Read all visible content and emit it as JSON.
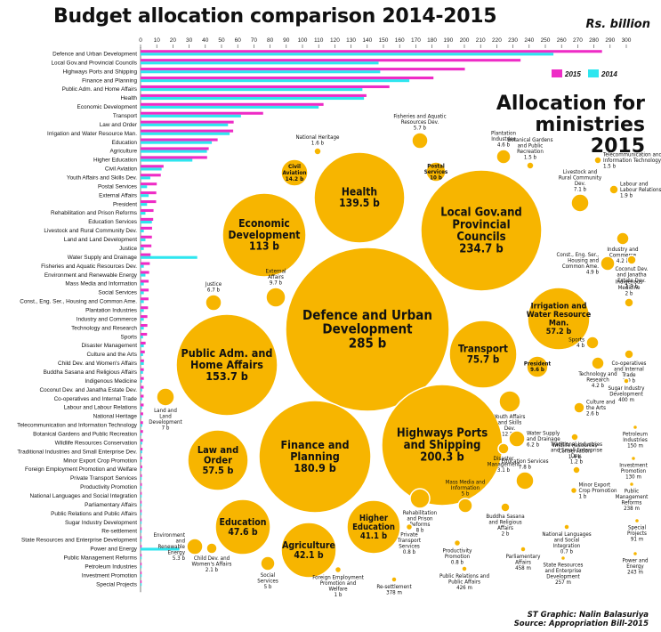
{
  "title": "Budget allocation comparison 2014-2015",
  "unit_label": "Rs. billion",
  "bubble_title": [
    "Allocation for ministries",
    "2015"
  ],
  "credit": [
    "ST Graphic: Nalin Balasuriya",
    "Source: Appropriation Bill-2015"
  ],
  "colors": {
    "y2015": "#ee2cc6",
    "y2014": "#2ee6ef",
    "bubble": "#f7b500",
    "bubble_stroke": "#ffffff"
  },
  "chart_data": [
    {
      "type": "bar",
      "orientation": "horizontal",
      "xlim": [
        0,
        300
      ],
      "ticks": [
        0,
        10,
        20,
        30,
        40,
        50,
        60,
        70,
        80,
        90,
        100,
        110,
        120,
        130,
        140,
        150,
        160,
        170,
        180,
        190,
        200,
        210,
        220,
        230,
        240,
        250,
        260,
        270,
        280,
        290,
        300
      ],
      "legend": "top-right",
      "categories": [
        "Defence and Urban Development",
        "Local Gov.and Provincial Councils",
        "Highways Ports  and Shipping",
        "Finance and Planning",
        "Public Adm. and Home Affairs",
        "Health",
        "Economic Development",
        "Transport",
        "Law and Order",
        "Irrigation and Water Resource Man.",
        "Education",
        "Agriculture",
        "Higher Education",
        "Civil Aviation",
        "Youth Affairs and Skills Dev.",
        "Postal Services",
        "External Affairs",
        "President",
        "Rehabilitation and Prison Reforms",
        "Education Services",
        "Livestock and Rural Community Dev.",
        "Land and Land Development",
        "Justice",
        "Water Supply and Drainage",
        "Fisheries and Aquatic Resources Dev.",
        "Environment and Renewable Energy",
        "Mass Media and Information",
        "Social Services",
        "Const., Eng. Ser., Housing and Common Ame.",
        "Plantation Industries",
        "Industry and Commerce",
        "Technology and Research",
        "Sports",
        "Disaster Management",
        "Culture and the Arts",
        "Child Dev. and Women's Affairs",
        "Buddha Sasana and Religious Affairs",
        "Indigenous Medicine",
        "Coconut Dev. and Janatha Estate Dev.",
        "Co-operatives and Internal Trade",
        "Labour and Labour Relations",
        "National Heritage",
        "Telecommunication and Information Technology",
        "Botanical Gardens and Public Recreation",
        "Wildlife Resources Conservation",
        "Traditional Industries and Small Enterprise Dev.",
        "Minor Export Crop Promotion",
        "Foreign Employment Promotion and Welfare",
        "Private Transport Services",
        "Productivity Promotion",
        "National Languages and Social Integration",
        "Parliamentary Affairs",
        "Public Relations and Public Affairs",
        "Sugar Industry Development",
        "Re-settlement",
        "State Resources and Enterprise Development",
        "Power and Energy",
        "Public Management Reforms",
        "Petroleum Industries",
        "Investment Promotion",
        "Special Projects"
      ],
      "series": [
        {
          "name": "2015",
          "values": [
            285,
            234.7,
            200.3,
            180.9,
            153.7,
            139.5,
            113,
            75.7,
            57.5,
            57.2,
            47.6,
            42.1,
            41.1,
            14.2,
            12.5,
            10,
            9.7,
            9.6,
            8,
            7.8,
            7.1,
            7,
            6.7,
            6.2,
            5.7,
            5.3,
            5,
            5,
            4.9,
            4.6,
            4.2,
            4.2,
            4,
            3.1,
            2.6,
            2.1,
            2,
            2,
            1.9,
            1.9,
            1.9,
            1.6,
            1.5,
            1.5,
            1.4,
            1.2,
            1,
            1,
            0.8,
            0.8,
            0.7,
            0.458,
            0.426,
            0.4,
            0.378,
            0.257,
            0.243,
            0.238,
            0.15,
            0.13,
            0.091
          ]
        },
        {
          "name": "2014",
          "values": [
            255,
            147,
            148,
            166,
            137,
            138,
            110,
            62,
            54,
            55,
            44,
            41,
            32,
            13,
            6,
            4,
            5,
            4,
            3,
            7,
            2,
            3,
            2,
            35,
            2,
            3,
            2,
            2,
            2,
            2,
            2,
            2,
            1.5,
            2,
            1.5,
            2,
            1.5,
            1,
            1,
            1,
            1,
            0.5,
            1,
            0.5,
            1,
            1,
            0.5,
            0.5,
            0.5,
            0.5,
            0.5,
            0.5,
            0.5,
            0.5,
            0.3,
            0.3,
            24,
            0.5,
            0.2,
            0.2,
            0.2
          ]
        }
      ]
    },
    {
      "type": "bubble",
      "title": "Allocation for ministries 2015",
      "bubbles": [
        {
          "label": "Defence and Urban Development",
          "value_label": "285 b",
          "value": 285
        },
        {
          "label": "Local Gov.and Provincial Councils",
          "value_label": "234.7 b",
          "value": 234.7
        },
        {
          "label": "Highways Ports and Shipping",
          "value_label": "200.3 b",
          "value": 200.3
        },
        {
          "label": "Finance and Planning",
          "value_label": "180.9 b",
          "value": 180.9
        },
        {
          "label": "Public Adm. and Home Affairs",
          "value_label": "153.7 b",
          "value": 153.7
        },
        {
          "label": "Health",
          "value_label": "139.5 b",
          "value": 139.5
        },
        {
          "label": "Economic Development",
          "value_label": "113 b",
          "value": 113
        },
        {
          "label": "Transport",
          "value_label": "75.7 b",
          "value": 75.7
        },
        {
          "label": "Law and Order",
          "value_label": "57.5 b",
          "value": 57.5
        },
        {
          "label": "Irrigation and Water Resource Man.",
          "value_label": "57.2 b",
          "value": 57.2
        },
        {
          "label": "Education",
          "value_label": "47.6 b",
          "value": 47.6
        },
        {
          "label": "Agriculture",
          "value_label": "42.1 b",
          "value": 42.1
        },
        {
          "label": "Higher Education",
          "value_label": "41.1 b",
          "value": 41.1
        },
        {
          "label": "Civil Aviation",
          "value_label": "14.2 b",
          "value": 14.2
        },
        {
          "label": "Youth Affairs and Skills Dev.",
          "value_label": "12.5 b",
          "value": 12.5
        },
        {
          "label": "Postal Services",
          "value_label": "10 b",
          "value": 10
        },
        {
          "label": "External Affairs",
          "value_label": "9.7 b",
          "value": 9.7
        },
        {
          "label": "President",
          "value_label": "9.6 b",
          "value": 9.6
        },
        {
          "label": "Rehabilitation and Prison Reforms",
          "value_label": "8 b",
          "value": 8
        },
        {
          "label": "Education Services",
          "value_label": "7.8 b",
          "value": 7.8
        },
        {
          "label": "Livestock and Rural Community Dev.",
          "value_label": "7.1 b",
          "value": 7.1
        },
        {
          "label": "Land and Land Development",
          "value_label": "7 b",
          "value": 7
        },
        {
          "label": "Justice",
          "value_label": "6.7 b",
          "value": 6.7
        },
        {
          "label": "Water Supply and Drainage",
          "value_label": "6.2 b",
          "value": 6.2
        },
        {
          "label": "Fisheries and Aquatic Resources Dev.",
          "value_label": "5.7 b",
          "value": 5.7
        },
        {
          "label": "Environment and Renewable Energy",
          "value_label": "5.3 b",
          "value": 5.3
        },
        {
          "label": "Mass Media and Information",
          "value_label": "5 b",
          "value": 5
        },
        {
          "label": "Social Services",
          "value_label": "5 b",
          "value": 5
        },
        {
          "label": "Const., Eng. Ser., Housing and Common Ame.",
          "value_label": "4.9 b",
          "value": 4.9
        },
        {
          "label": "Plantation Industries",
          "value_label": "4.6 b",
          "value": 4.6
        },
        {
          "label": "Industry and Commerce",
          "value_label": "4.2 b",
          "value": 4.2
        },
        {
          "label": "Technology and Research",
          "value_label": "4.2 b",
          "value": 4.2
        },
        {
          "label": "Sports",
          "value_label": "4 b",
          "value": 4
        },
        {
          "label": "Disaster Management",
          "value_label": "3.1 b",
          "value": 3.1
        },
        {
          "label": "Culture and the Arts",
          "value_label": "2.6 b",
          "value": 2.6
        },
        {
          "label": "Child Dev. and Women's Affairs",
          "value_label": "2.1 b",
          "value": 2.1
        },
        {
          "label": "Buddha Sasana and Religious Affairs",
          "value_label": "2 b",
          "value": 2
        },
        {
          "label": "Indigenous Medicine",
          "value_label": "2 b",
          "value": 2
        },
        {
          "label": "Coconut Dev. and Janatha Estate Dev.",
          "value_label": "1.9 b",
          "value": 1.9
        },
        {
          "label": "Co-operatives and Internal Trade",
          "value_label": "1.9 b",
          "value": 1.9
        },
        {
          "label": "Labour and Labour Relations",
          "value_label": "1.9 b",
          "value": 1.9
        },
        {
          "label": "National Heritage",
          "value_label": "1.6 b",
          "value": 1.6
        },
        {
          "label": "Telecommunication and Information Technology",
          "value_label": "1.5 b",
          "value": 1.5
        },
        {
          "label": "Botanical Gardens and Public Recreation",
          "value_label": "1.5 b",
          "value": 1.5
        },
        {
          "label": "Wildlife Resources Conservation",
          "value_label": "1.4 b",
          "value": 1.4
        },
        {
          "label": "Traditional Industries and Small Enterprise Dev.",
          "value_label": "1.2 b",
          "value": 1.2
        },
        {
          "label": "Minor Export Crop Promotion",
          "value_label": "1 b",
          "value": 1
        },
        {
          "label": "Foreign Employment Promotion and Welfare",
          "value_label": "1 b",
          "value": 1
        },
        {
          "label": "Private Transport Services",
          "value_label": "0.8 b",
          "value": 0.8
        },
        {
          "label": "Productivity Promotion",
          "value_label": "0.8 b",
          "value": 0.8
        },
        {
          "label": "National Languages and Social Integration",
          "value_label": "0.7 b",
          "value": 0.7
        },
        {
          "label": "Parliamentary Affairs",
          "value_label": "458 m",
          "value": 0.458
        },
        {
          "label": "Public Relations and Public Affairs",
          "value_label": "426 m",
          "value": 0.426
        },
        {
          "label": "Sugar Industry Development",
          "value_label": "400 m",
          "value": 0.4
        },
        {
          "label": "Re-settlement",
          "value_label": "378 m",
          "value": 0.378
        },
        {
          "label": "State Resources and Enterprise Development",
          "value_label": "257 m",
          "value": 0.257
        },
        {
          "label": "Power and Energy",
          "value_label": "243 m",
          "value": 0.243
        },
        {
          "label": "Public Management Reforms",
          "value_label": "238 m",
          "value": 0.238
        },
        {
          "label": "Petroleum Industries",
          "value_label": "150 m",
          "value": 0.15
        },
        {
          "label": "Investment Promotion",
          "value_label": "130 m",
          "value": 0.13
        },
        {
          "label": "Special Projects",
          "value_label": "91 m",
          "value": 0.091
        }
      ]
    }
  ]
}
